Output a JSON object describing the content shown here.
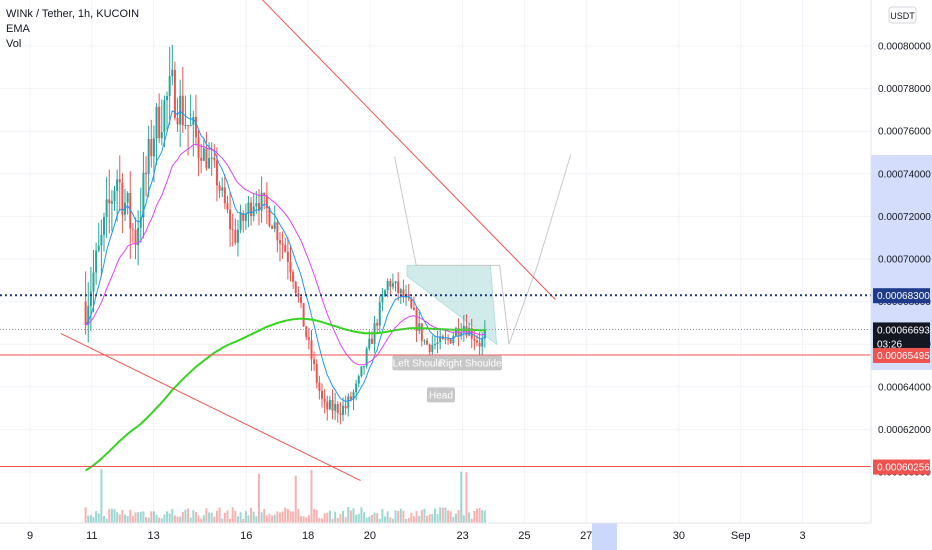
{
  "legend": {
    "symbol_line": "WINk / Tether, 1h, KUCOIN",
    "indicator_1": "EMA",
    "indicator_2": "Vol"
  },
  "currency_button": "USDT",
  "countdown": "03:26",
  "colors": {
    "up": "#26a69a",
    "down": "#ef5350",
    "ema_fast": "#2196f3",
    "ema_mid": "#e040fb",
    "ema_slow": "#35d41e",
    "trendline": "#ef5350",
    "pattern_fill": "#b2dfdb",
    "dotted_price": "#1e3a8a",
    "axis_highlight": "#c5d3fb"
  },
  "chart_data": {
    "type": "candlestick",
    "title": "WINk / Tether, 1h, KUCOIN",
    "y_range": [
      0.000597,
      0.00082
    ],
    "y_ticks": [
      "0.00080000",
      "0.00078000",
      "0.00076000",
      "0.00074000",
      "0.00072000",
      "0.00070000",
      "0.00068000",
      "0.00066000",
      "0.00064000",
      "0.00062000",
      "0.00060000"
    ],
    "y_tick_values": [
      0.0008,
      0.00078,
      0.00076,
      0.00074,
      0.00072,
      0.0007,
      0.00068,
      0.00066,
      0.00064,
      0.00062,
      0.0006
    ],
    "x_ticks": [
      "9",
      "11",
      "13",
      "16",
      "18",
      "20",
      "23",
      "25",
      "27",
      "30",
      "Sep",
      "3"
    ],
    "x_tick_days": [
      9,
      11,
      13,
      16,
      18,
      20,
      23,
      25,
      27,
      30,
      32,
      34
    ],
    "x_highlight": {
      "label": "27",
      "day": 27
    },
    "price_labels": [
      {
        "text": "0.00068300",
        "value": 0.000683,
        "style": "dotted"
      },
      {
        "text": "0.00066693",
        "value": 0.00066693,
        "style": "last"
      },
      {
        "text": "0.00065495",
        "value": 0.00065495,
        "style": "line"
      },
      {
        "text": "0.00060256",
        "value": 0.00060256,
        "style": "line"
      }
    ],
    "annotations": [
      {
        "text": "Left Shoulder",
        "day": 21.7,
        "price": 0.000651
      },
      {
        "text": "Right Shoulder",
        "day": 23.3,
        "price": 0.000651
      },
      {
        "text": "Head",
        "day": 22.3,
        "price": 0.000636
      }
    ],
    "descending_trendline": [
      [
        16.5,
        0.000822
      ],
      [
        26.0,
        0.000681
      ]
    ],
    "lower_trendline": [
      [
        10.0,
        0.000665
      ],
      [
        19.7,
        0.000596
      ]
    ],
    "neckline_pattern": [
      [
        21.2,
        0.000697
      ],
      [
        23.9,
        0.000697
      ],
      [
        24.1,
        0.00066
      ],
      [
        21.2,
        0.000692
      ]
    ],
    "projection": [
      [
        20.8,
        0.000748
      ],
      [
        21.5,
        0.000697
      ],
      [
        24.2,
        0.000697
      ],
      [
        24.5,
        0.00066
      ],
      [
        25.4,
        0.000696
      ],
      [
        26.5,
        0.000749
      ]
    ],
    "horizontal_lines": [
      0.00065495,
      0.00060256
    ]
  }
}
